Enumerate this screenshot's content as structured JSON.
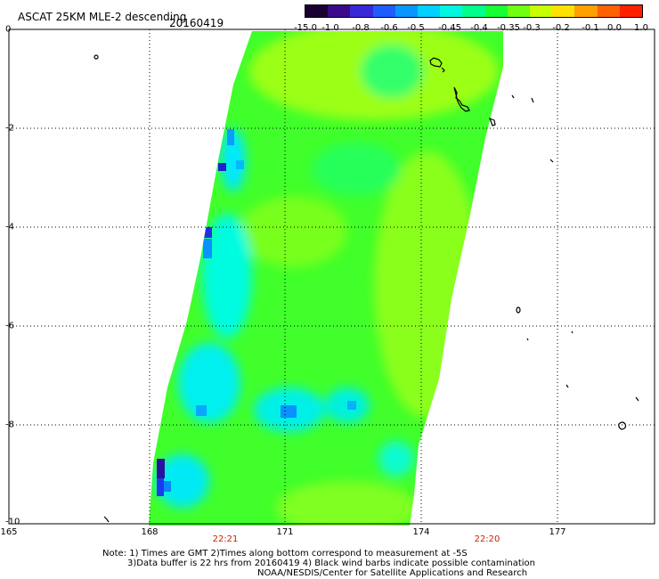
{
  "header": {
    "title": "ASCAT 25KM MLE-2 descending",
    "date": "20160419"
  },
  "colorbar": {
    "labels": [
      "-15.0",
      "-1.0",
      "-0.8",
      "-0.6",
      "-0.5",
      "-0.45",
      "-0.4",
      "-0.35",
      "-0.3",
      "-0.2",
      "-0.1",
      "0.0",
      "1.0"
    ],
    "colors": [
      "#1a0030",
      "#3b0a8a",
      "#3a28d8",
      "#1f5cff",
      "#0a96ff",
      "#00d0ff",
      "#00f5e0",
      "#00ff8a",
      "#16ff32",
      "#70ff10",
      "#c8ff00",
      "#ffe000",
      "#ffa000",
      "#ff6000",
      "#ff2000"
    ]
  },
  "axes": {
    "y_ticks": [
      "0",
      "-2",
      "-4",
      "-6",
      "-8",
      "-10"
    ],
    "x_ticks": [
      "165",
      "168",
      "171",
      "174",
      "177"
    ],
    "times": [
      "22:21",
      "22:20"
    ]
  },
  "notes": [
    "Note: 1) Times are GMT 2)Times along bottom correspond to measurement at -5S",
    "3)Data buffer is 22 hrs from 20160419 4) Black wind barbs indicate possible contamination",
    "NOAA/NESDIS/Center for Satellite Applications and Research"
  ]
}
